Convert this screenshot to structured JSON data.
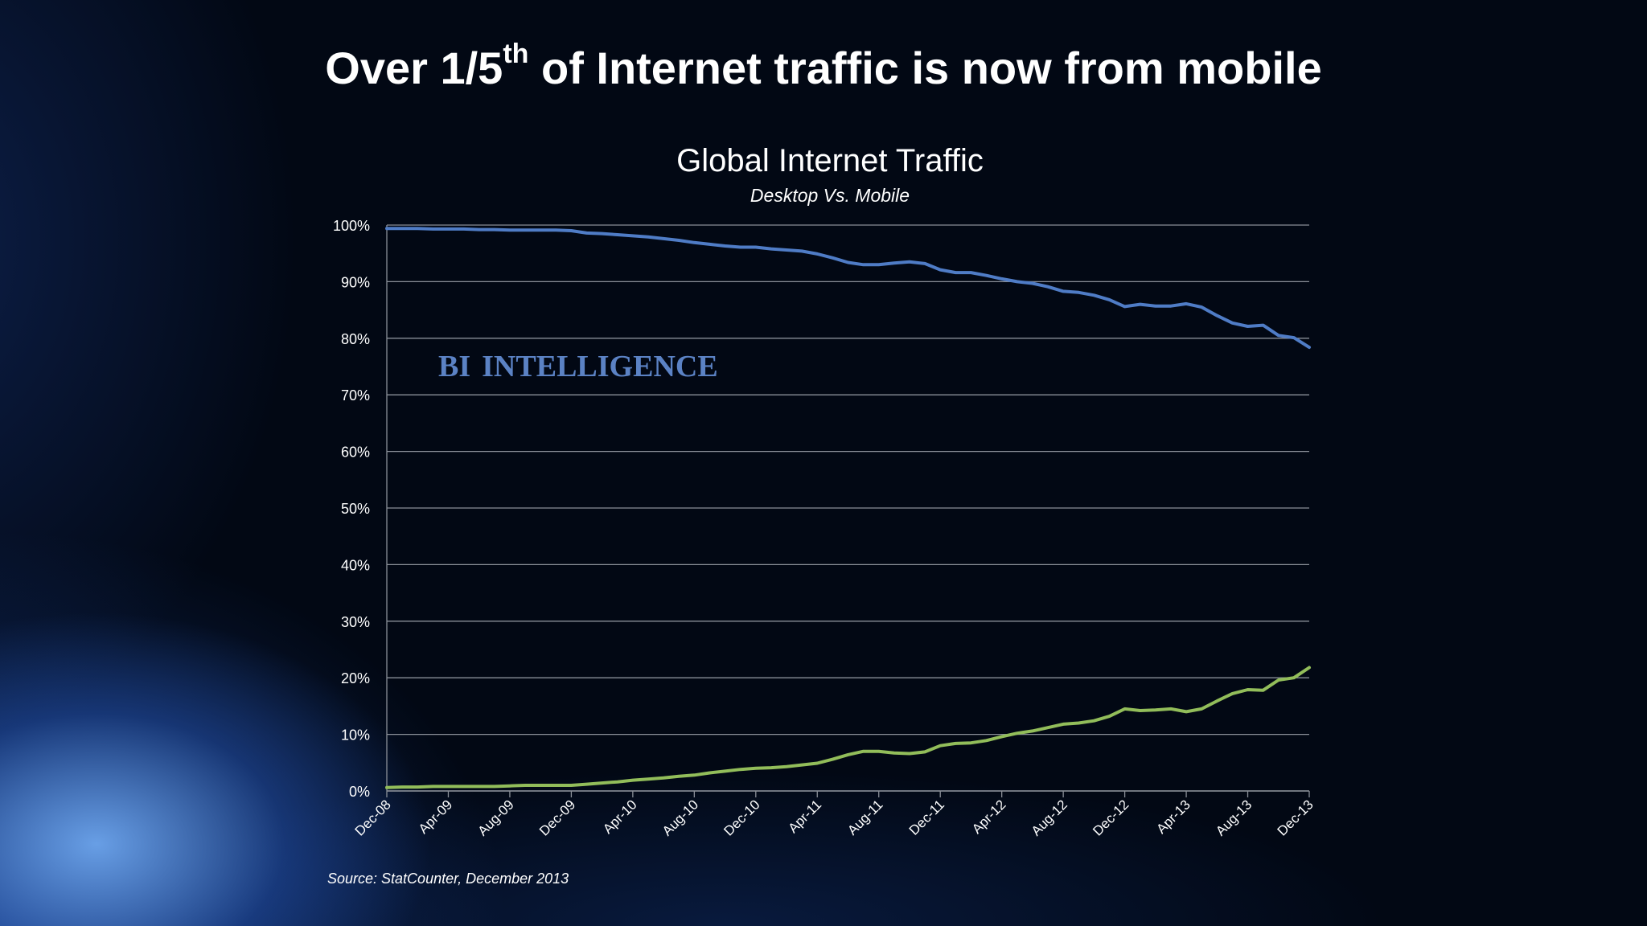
{
  "headline": {
    "pre": "Over 1/5",
    "sup": "th",
    "post": " of Internet traffic is now from mobile"
  },
  "source": "Source: StatCounter, December 2013",
  "watermark": {
    "first": "BI",
    "second": "INTELLIGENCE",
    "color": "#5b82c4"
  },
  "colors": {
    "desktop": "#4f7cc6",
    "mobile": "#92bd5a",
    "grid": "#8a8f98",
    "text": "#ffffff"
  },
  "chart_data": {
    "type": "line",
    "title": "Global Internet Traffic",
    "subtitle": "Desktop Vs. Mobile",
    "ylim": [
      0,
      100
    ],
    "y_ticks": [
      "0%",
      "10%",
      "20%",
      "30%",
      "40%",
      "50%",
      "60%",
      "70%",
      "80%",
      "90%",
      "100%"
    ],
    "x_tick_labels": [
      "Dec-08",
      "Apr-09",
      "Aug-09",
      "Dec-09",
      "Apr-10",
      "Aug-10",
      "Dec-10",
      "Apr-11",
      "Aug-11",
      "Dec-11",
      "Apr-12",
      "Aug-12",
      "Dec-12",
      "Apr-13",
      "Aug-13",
      "Dec-13"
    ],
    "grid": true,
    "legend": "none",
    "x": [
      "Dec-08",
      "Jan-09",
      "Feb-09",
      "Mar-09",
      "Apr-09",
      "May-09",
      "Jun-09",
      "Jul-09",
      "Aug-09",
      "Sep-09",
      "Oct-09",
      "Nov-09",
      "Dec-09",
      "Jan-10",
      "Feb-10",
      "Mar-10",
      "Apr-10",
      "May-10",
      "Jun-10",
      "Jul-10",
      "Aug-10",
      "Sep-10",
      "Oct-10",
      "Nov-10",
      "Dec-10",
      "Jan-11",
      "Feb-11",
      "Mar-11",
      "Apr-11",
      "May-11",
      "Jun-11",
      "Jul-11",
      "Aug-11",
      "Sep-11",
      "Oct-11",
      "Nov-11",
      "Dec-11",
      "Jan-12",
      "Feb-12",
      "Mar-12",
      "Apr-12",
      "May-12",
      "Jun-12",
      "Jul-12",
      "Aug-12",
      "Sep-12",
      "Oct-12",
      "Nov-12",
      "Dec-12",
      "Jan-13",
      "Feb-13",
      "Mar-13",
      "Apr-13",
      "May-13",
      "Jun-13",
      "Jul-13",
      "Aug-13",
      "Sep-13",
      "Oct-13",
      "Nov-13",
      "Dec-13"
    ],
    "series": [
      {
        "key": "desktop",
        "values": [
          99.4,
          99.4,
          99.4,
          99.3,
          99.3,
          99.3,
          99.2,
          99.2,
          99.1,
          99.1,
          99.1,
          99.1,
          99.0,
          98.6,
          98.5,
          98.3,
          98.1,
          97.9,
          97.6,
          97.3,
          96.9,
          96.6,
          96.3,
          96.1,
          96.1,
          95.8,
          95.6,
          95.4,
          94.9,
          94.2,
          93.4,
          93.0,
          93.0,
          93.3,
          93.5,
          93.2,
          92.1,
          91.6,
          91.6,
          91.1,
          90.5,
          90.0,
          89.7,
          89.1,
          88.3,
          88.1,
          87.6,
          86.8,
          85.6,
          86.0,
          85.7,
          85.7,
          86.1,
          85.5,
          84.0,
          82.7,
          82.1,
          82.3,
          80.5,
          80.1,
          78.4
        ]
      },
      {
        "key": "mobile",
        "values": [
          0.6,
          0.7,
          0.7,
          0.8,
          0.8,
          0.8,
          0.8,
          0.8,
          0.9,
          1.0,
          1.0,
          1.0,
          1.0,
          1.2,
          1.4,
          1.6,
          1.9,
          2.1,
          2.3,
          2.6,
          2.8,
          3.2,
          3.5,
          3.8,
          4.0,
          4.1,
          4.3,
          4.6,
          4.9,
          5.6,
          6.4,
          7.0,
          7.0,
          6.7,
          6.6,
          6.9,
          8.0,
          8.4,
          8.5,
          8.9,
          9.6,
          10.2,
          10.6,
          11.2,
          11.8,
          12.0,
          12.4,
          13.2,
          14.5,
          14.2,
          14.3,
          14.5,
          14.0,
          14.5,
          15.9,
          17.2,
          17.9,
          17.8,
          19.6,
          20.0,
          21.8
        ]
      }
    ]
  }
}
